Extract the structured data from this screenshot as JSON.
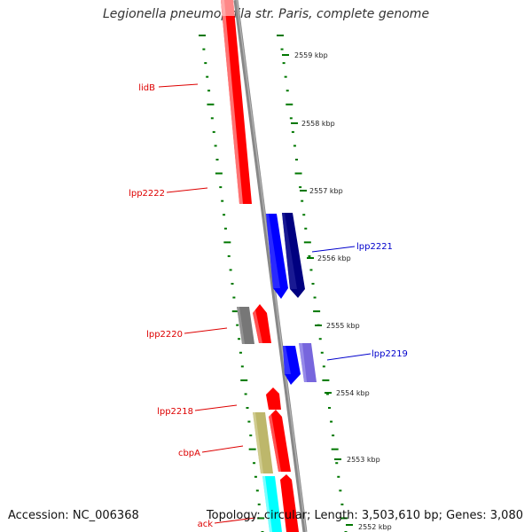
{
  "title": "Legionella pneumophila str. Paris, complete genome",
  "footer": {
    "accession": "Accession: NC_006368",
    "summary": "Topology: circular; Length: 3,503,610 bp; Genes: 3,080"
  },
  "colors": {
    "red_gene": "#ff0000",
    "blue_gene": "#0000ff",
    "navy_gene": "#000080",
    "slate_gene": "#7766dd",
    "gray_gene": "#777777",
    "khaki_gene": "#bdb76b",
    "cyan_gene": "#00ffff",
    "backbone": "#888888",
    "tick": "#007700",
    "label_red": "#dd0000",
    "label_blue": "#0000cc"
  },
  "scale_ticks": [
    {
      "label": "2559 kbp"
    },
    {
      "label": "2558 kbp"
    },
    {
      "label": "2557 kbp"
    },
    {
      "label": "2556 kbp"
    },
    {
      "label": "2555 kbp"
    },
    {
      "label": "2554 kbp"
    },
    {
      "label": "2553 kbp"
    },
    {
      "label": "2552 kbp"
    }
  ],
  "gene_labels": [
    {
      "text": "lidB",
      "strand": "reverse"
    },
    {
      "text": "lpp2222",
      "strand": "reverse"
    },
    {
      "text": "lpp2221",
      "strand": "forward"
    },
    {
      "text": "lpp2220",
      "strand": "reverse"
    },
    {
      "text": "lpp2219",
      "strand": "forward"
    },
    {
      "text": "lpp2218",
      "strand": "reverse"
    },
    {
      "text": "cbpA",
      "strand": "reverse"
    },
    {
      "text": "ack",
      "strand": "reverse"
    }
  ]
}
